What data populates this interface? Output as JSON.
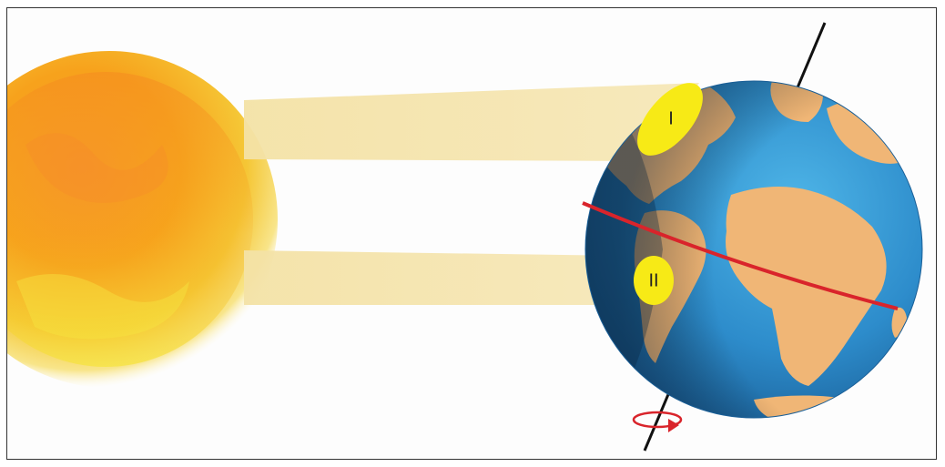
{
  "diagram": {
    "regions": [
      {
        "label": "I"
      },
      {
        "label": "II"
      }
    ],
    "colors": {
      "sun_core": "#f7a21c",
      "sun_edge": "#f4d340",
      "beam": "#f4e2a6",
      "ocean": "#2e8fcb",
      "land": "#f0b676",
      "equator": "#d9242b",
      "highlight": "#f7ea16",
      "axis": "#111111",
      "rotation_arrow": "#d9242b"
    },
    "icons": {
      "rotation": "rotation-arrow-icon"
    }
  }
}
